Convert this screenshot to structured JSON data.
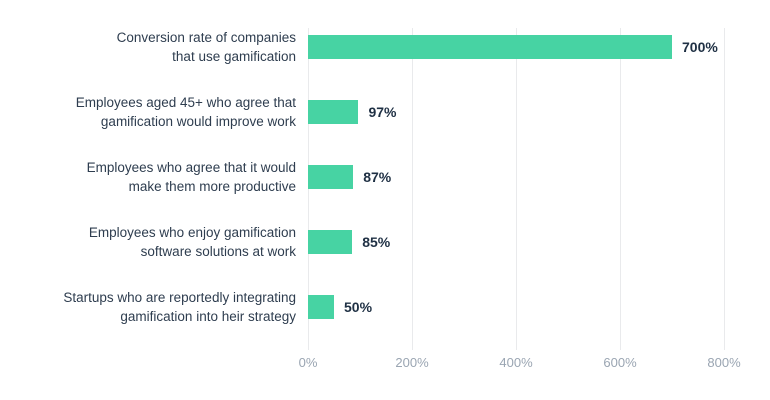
{
  "chart_data": {
    "type": "bar",
    "orientation": "horizontal",
    "title": "",
    "categories": [
      "Conversion rate of companies\nthat use gamification",
      "Employees aged 45+ who agree that\ngamification would improve work",
      "Employees who agree that it would\nmake them more productive",
      "Employees who enjoy gamification\nsoftware solutions at work",
      "Startups who are reportedly integrating\ngamification into heir strategy"
    ],
    "values": [
      700,
      97,
      87,
      85,
      50
    ],
    "value_labels": [
      "700%",
      "97%",
      "87%",
      "85%",
      "50%"
    ],
    "xlabel": "",
    "ylabel": "",
    "xlim": [
      0,
      800
    ],
    "x_tick_values": [
      0,
      200,
      400,
      600,
      800
    ],
    "x_tick_labels": [
      "0%",
      "200%",
      "400%",
      "600%",
      "800%"
    ],
    "grid": "vertical-on",
    "legend": "none",
    "colors": {
      "bar": "#47d3a3",
      "value_label": "#1f3044",
      "category_label": "#2e3d4f",
      "axis_tick_label": "#9aa5b2",
      "gridline": "#e9eaec",
      "background": "#ffffff"
    }
  }
}
